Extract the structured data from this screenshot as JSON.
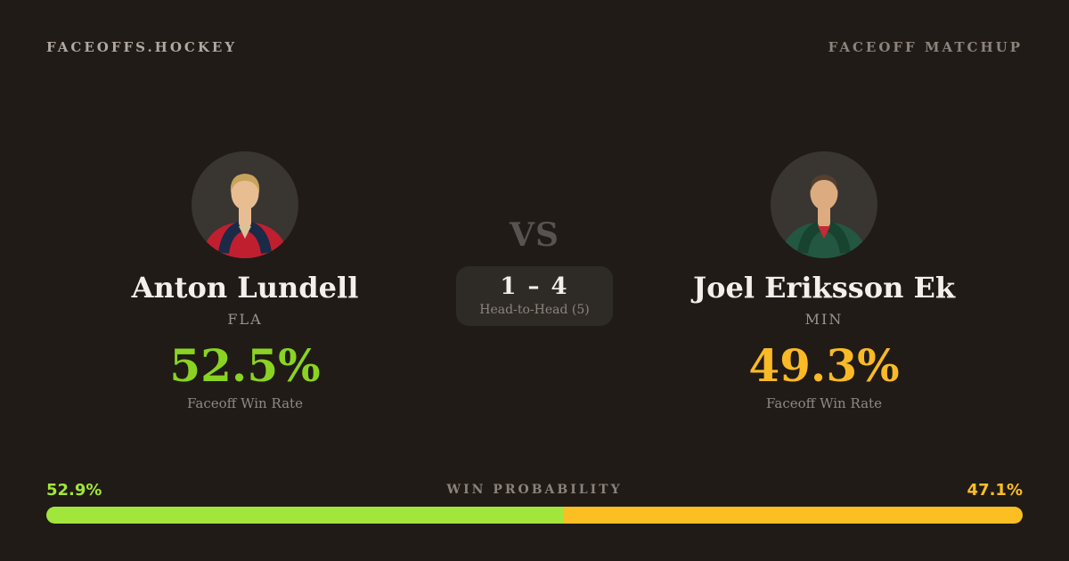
{
  "header": {
    "brand": "FACEOFFS.HOCKEY",
    "page_label": "FACEOFF MATCHUP"
  },
  "matchup": {
    "vs_label": "VS",
    "head_to_head": {
      "score": "1 – 4",
      "label": "Head-to-Head (5)"
    }
  },
  "players": [
    {
      "name": "Anton Lundell",
      "team": "FLA",
      "faceoff_win_rate": "52.5%",
      "win_rate_label": "Faceoff Win Rate",
      "accent": "#8ad322",
      "avatar": {
        "bg": "#393531",
        "skin": "#e9bd92",
        "hair": "#c8a35b",
        "jersey": "#c01f30",
        "yoke": "#1b2a47",
        "accent": "#d8c496"
      }
    },
    {
      "name": "Joel Eriksson Ek",
      "team": "MIN",
      "faceoff_win_rate": "49.3%",
      "win_rate_label": "Faceoff Win Rate",
      "accent": "#f9ba25",
      "avatar": {
        "bg": "#393531",
        "skin": "#dcab80",
        "hair": "#54402c",
        "jersey": "#235741",
        "yoke": "#17432f",
        "accent": "#c42b36"
      }
    }
  ],
  "win_probability": {
    "title": "WIN PROBABILITY",
    "left": {
      "value": "52.9%",
      "color": "#a2e53b"
    },
    "right": {
      "value": "47.1%",
      "color": "#fbbf24"
    }
  },
  "colors": {
    "background": "#201b17",
    "box_background": "#2e2a26"
  }
}
